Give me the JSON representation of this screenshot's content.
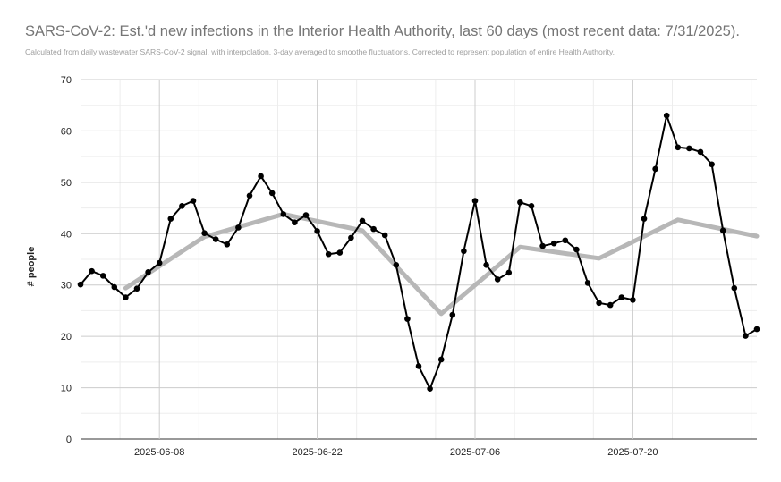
{
  "chart_data": {
    "type": "line",
    "title": "SARS-CoV-2: Est.'d new infections in the Interior Health Authority, last 60 days (most recent data: 7/31/2025).",
    "subtitle": "Calculated from daily wastewater SARS-CoV-2 signal, with interpolation. 3-day averaged to smoothe fluctuations. Corrected to represent population of entire Health Authority.",
    "xlabel": "",
    "ylabel": "# people",
    "ylim": [
      0,
      70
    ],
    "yticks": [
      0,
      10,
      20,
      30,
      40,
      50,
      60,
      70
    ],
    "xlim": [
      "2025-06-01",
      "2025-07-31"
    ],
    "xticks": [
      "2025-06-08",
      "2025-06-22",
      "2025-07-06",
      "2025-07-20"
    ],
    "grid": true,
    "legend": "none",
    "series": [
      {
        "color": "#000000",
        "markers": true,
        "x": [
          "2025-06-01",
          "2025-06-02",
          "2025-06-03",
          "2025-06-04",
          "2025-06-05",
          "2025-06-06",
          "2025-06-07",
          "2025-06-08",
          "2025-06-09",
          "2025-06-10",
          "2025-06-11",
          "2025-06-12",
          "2025-06-13",
          "2025-06-14",
          "2025-06-15",
          "2025-06-16",
          "2025-06-17",
          "2025-06-18",
          "2025-06-19",
          "2025-06-20",
          "2025-06-21",
          "2025-06-22",
          "2025-06-23",
          "2025-06-24",
          "2025-06-25",
          "2025-06-26",
          "2025-06-27",
          "2025-06-28",
          "2025-06-29",
          "2025-06-30",
          "2025-07-01",
          "2025-07-02",
          "2025-07-03",
          "2025-07-04",
          "2025-07-05",
          "2025-07-06",
          "2025-07-07",
          "2025-07-08",
          "2025-07-09",
          "2025-07-10",
          "2025-07-11",
          "2025-07-12",
          "2025-07-13",
          "2025-07-14",
          "2025-07-15",
          "2025-07-16",
          "2025-07-17",
          "2025-07-18",
          "2025-07-19",
          "2025-07-20",
          "2025-07-21",
          "2025-07-22",
          "2025-07-23",
          "2025-07-24",
          "2025-07-25",
          "2025-07-26",
          "2025-07-27",
          "2025-07-28",
          "2025-07-29",
          "2025-07-30",
          "2025-07-31"
        ],
        "values": [
          30.1,
          32.7,
          31.8,
          29.6,
          27.6,
          29.3,
          32.5,
          34.3,
          42.9,
          45.4,
          46.4,
          40.1,
          38.9,
          37.9,
          41.2,
          47.4,
          51.2,
          47.9,
          43.8,
          42.2,
          43.6,
          40.5,
          36.0,
          36.3,
          39.2,
          42.5,
          40.9,
          39.7,
          33.9,
          23.4,
          14.2,
          9.8,
          15.5,
          24.2,
          36.6,
          46.4,
          33.9,
          31.1,
          32.4,
          46.1,
          45.4,
          37.6,
          38.1,
          38.7,
          36.9,
          30.4,
          26.5,
          26.1,
          27.6,
          27.1,
          42.9,
          52.6,
          63.0,
          56.8,
          56.6,
          55.9,
          53.5,
          40.6,
          29.4,
          20.1,
          21.4
        ]
      },
      {
        "color": "#b7b7b7",
        "markers": false,
        "x": [
          "2025-06-05",
          "2025-06-12",
          "2025-06-19",
          "2025-06-26",
          "2025-07-03",
          "2025-07-10",
          "2025-07-17",
          "2025-07-24",
          "2025-07-31"
        ],
        "values": [
          29.4,
          39.4,
          43.8,
          40.6,
          24.4,
          37.4,
          35.2,
          42.7,
          39.5
        ]
      }
    ]
  }
}
